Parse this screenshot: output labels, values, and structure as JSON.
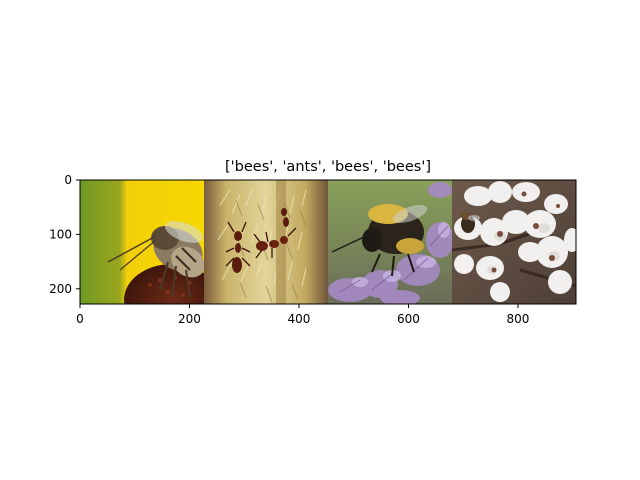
{
  "figure": {
    "title": "['bees', 'ants', 'bees', 'bees']",
    "xticks": [
      0,
      200,
      400,
      600,
      800
    ],
    "yticks": [
      0,
      100,
      200
    ],
    "image_width": 906,
    "image_height": 228,
    "panels": [
      {
        "name": "bee-on-flower",
        "label": "bees"
      },
      {
        "name": "ants-on-plant",
        "label": "ants"
      },
      {
        "name": "bumblebee-on-flowers",
        "label": "bees"
      },
      {
        "name": "bee-on-white-blossoms",
        "label": "bees"
      }
    ],
    "colors": {
      "axis": "#000000",
      "background": "#ffffff"
    }
  }
}
